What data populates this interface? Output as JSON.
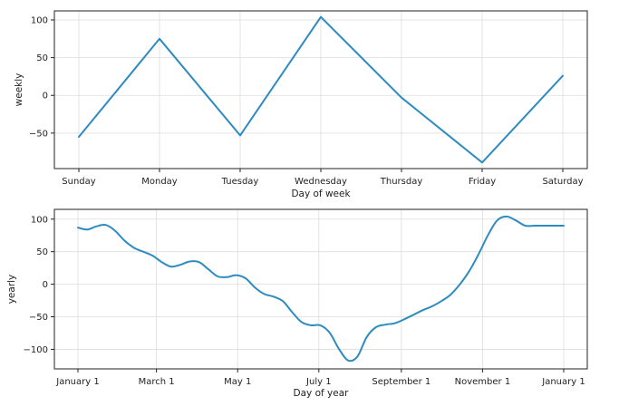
{
  "chart_data": [
    {
      "type": "line",
      "title": "",
      "xlabel": "Day of week",
      "ylabel": "weekly",
      "categories": [
        "Sunday",
        "Monday",
        "Tuesday",
        "Wednesday",
        "Thursday",
        "Friday",
        "Saturday"
      ],
      "values": [
        -55,
        75,
        -53,
        104,
        -3,
        -89,
        26
      ],
      "ylim": [
        -97,
        112
      ],
      "yticks": [
        100,
        50,
        0,
        -50
      ],
      "ytick_labels": [
        "100",
        "50",
        "0",
        "−50"
      ],
      "grid": true,
      "color": "#2e8bc0"
    },
    {
      "type": "line",
      "title": "",
      "xlabel": "Day of year",
      "ylabel": "yearly",
      "x": [
        0,
        7,
        14,
        21,
        28,
        35,
        42,
        49,
        56,
        63,
        70,
        77,
        84,
        91,
        98,
        105,
        112,
        119,
        126,
        133,
        140,
        147,
        154,
        161,
        168,
        175,
        182,
        189,
        196,
        203,
        210,
        217,
        224,
        231,
        238,
        245,
        252,
        259,
        266,
        273,
        280,
        287,
        294,
        301,
        308,
        315,
        322,
        329,
        336,
        343,
        350,
        357,
        365
      ],
      "values": [
        87,
        84,
        89,
        91,
        82,
        67,
        56,
        50,
        44,
        34,
        27,
        30,
        35,
        34,
        23,
        12,
        11,
        14,
        9,
        -5,
        -15,
        -19,
        -26,
        -43,
        -58,
        -63,
        -63,
        -74,
        -99,
        -117,
        -111,
        -81,
        -66,
        -62,
        -60,
        -54,
        -47,
        -40,
        -34,
        -26,
        -16,
        0,
        20,
        46,
        75,
        98,
        104,
        98,
        90,
        90,
        90,
        90,
        90
      ],
      "ylim": [
        -130,
        115
      ],
      "xlim": [
        0,
        365
      ],
      "xticks": [
        0,
        59,
        120,
        181,
        243,
        304,
        365
      ],
      "xtick_labels": [
        "January 1",
        "March 1",
        "May 1",
        "July 1",
        "September 1",
        "November 1",
        "January 1"
      ],
      "yticks": [
        100,
        50,
        0,
        -50,
        -100
      ],
      "ytick_labels": [
        "100",
        "50",
        "0",
        "−50",
        "−100"
      ],
      "grid": true,
      "color": "#2e8bc0"
    }
  ]
}
